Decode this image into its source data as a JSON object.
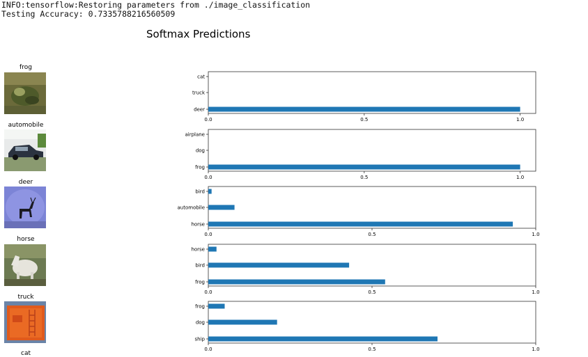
{
  "log": {
    "line1": "INFO:tensorflow:Restoring parameters from ./image_classification",
    "line2": "Testing Accuracy: 0.7335788216560509"
  },
  "figure_title": "Softmax Predictions",
  "colors": {
    "bar": "#1f77b4",
    "axes": "#333333"
  },
  "samples": [
    {
      "label": "frog"
    },
    {
      "label": "automobile"
    },
    {
      "label": "deer"
    },
    {
      "label": "horse"
    },
    {
      "label": "truck"
    },
    {
      "label": "cat"
    }
  ],
  "chart_data": [
    {
      "type": "bar",
      "orientation": "horizontal",
      "categories": [
        "cat",
        "truck",
        "deer"
      ],
      "values": [
        0.0,
        0.0,
        1.0
      ],
      "xticks": [
        "0.0",
        "0.5",
        "1.0"
      ],
      "xlim": [
        0,
        1.05
      ]
    },
    {
      "type": "bar",
      "orientation": "horizontal",
      "categories": [
        "airplane",
        "dog",
        "frog"
      ],
      "values": [
        0.0,
        0.0,
        1.0
      ],
      "xticks": [
        "0.0",
        "0.5",
        "1.0"
      ],
      "xlim": [
        0,
        1.05
      ]
    },
    {
      "type": "bar",
      "orientation": "horizontal",
      "categories": [
        "bird",
        "automobile",
        "horse"
      ],
      "values": [
        0.01,
        0.08,
        0.93
      ],
      "xticks": [
        "0.0",
        "0.5",
        "1.0"
      ],
      "xlim": [
        0,
        1.0
      ]
    },
    {
      "type": "bar",
      "orientation": "horizontal",
      "categories": [
        "horse",
        "bird",
        "frog"
      ],
      "values": [
        0.025,
        0.43,
        0.54
      ],
      "xticks": [
        "0.0",
        "0.5",
        "1.0"
      ],
      "xlim": [
        0,
        1.0
      ]
    },
    {
      "type": "bar",
      "orientation": "horizontal",
      "categories": [
        "frog",
        "dog",
        "ship"
      ],
      "values": [
        0.05,
        0.21,
        0.7
      ],
      "xticks": [
        "0.0",
        "0.5",
        "1.0"
      ],
      "xlim": [
        0,
        1.0
      ]
    }
  ]
}
